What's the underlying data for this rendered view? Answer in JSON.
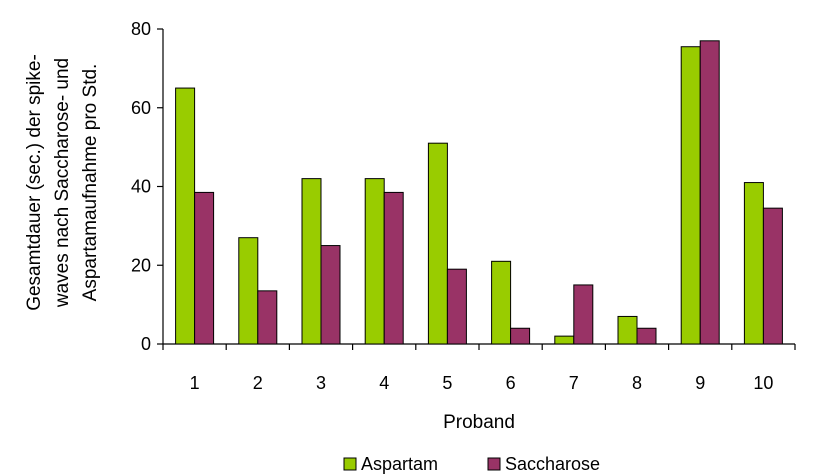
{
  "chart_data": {
    "type": "bar",
    "categories": [
      "1",
      "2",
      "3",
      "4",
      "5",
      "6",
      "7",
      "8",
      "9",
      "10"
    ],
    "series": [
      {
        "name": "Aspartam",
        "values": [
          65,
          27,
          42,
          42,
          51,
          21,
          2,
          7,
          75.5,
          41
        ],
        "color": "#99cc00"
      },
      {
        "name": "Saccharose",
        "values": [
          38.5,
          13.5,
          25,
          38.5,
          19,
          4,
          15,
          4,
          77,
          34.5
        ],
        "color": "#993366"
      }
    ],
    "xlabel": "Proband",
    "ylabel_lines": [
      "Gesamtdauer (sec.) der spike-",
      "waves  nach Saccharose- und",
      "Aspartamaufnahme pro Std."
    ],
    "ylim": [
      0,
      80
    ],
    "yticks": [
      "0",
      "20",
      "40",
      "60",
      "80"
    ],
    "grid": false,
    "legend_position": "bottom-center"
  }
}
